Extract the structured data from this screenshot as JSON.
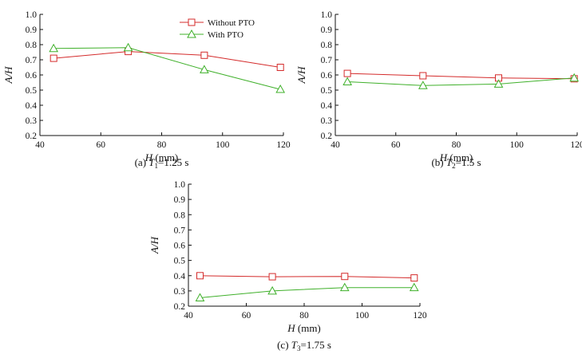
{
  "style": {
    "without_color": "#d42b2b",
    "with_color": "#3fb02a",
    "axis_color": "#111111"
  },
  "legend": {
    "without_label": "Without PTO",
    "with_label": "With PTO",
    "placement": "top-center"
  },
  "chart_data": [
    {
      "type": "line",
      "id": "a",
      "caption": {
        "prefix": "(a) ",
        "var": "T",
        "sub": "1",
        "suffix": "=1.25 s"
      },
      "xlabel": {
        "var": "H",
        "unit": " (mm)"
      },
      "ylabel": "A/H",
      "xlim": [
        40,
        120
      ],
      "ylim": [
        0.2,
        1.0
      ],
      "xticks": [
        "40",
        "60",
        "80",
        "100",
        "120"
      ],
      "yticks": [
        "0.2",
        "0.3",
        "0.4",
        "0.5",
        "0.6",
        "0.7",
        "0.8",
        "0.9",
        "1.0"
      ],
      "series": [
        {
          "name": "Without PTO",
          "marker": "square",
          "x": [
            44.5,
            69,
            94,
            119
          ],
          "values": [
            0.71,
            0.755,
            0.73,
            0.65
          ]
        },
        {
          "name": "With PTO",
          "marker": "triangle",
          "x": [
            44.5,
            69,
            94,
            119
          ],
          "values": [
            0.775,
            0.78,
            0.635,
            0.505
          ]
        }
      ]
    },
    {
      "type": "line",
      "id": "b",
      "caption": {
        "prefix": "(b) ",
        "var": "T",
        "sub": "2",
        "suffix": "=1.5 s"
      },
      "xlabel": {
        "var": "H",
        "unit": " (mm)"
      },
      "ylabel": "A/H",
      "xlim": [
        40,
        120
      ],
      "ylim": [
        0.2,
        1.0
      ],
      "xticks": [
        "40",
        "60",
        "80",
        "100",
        "120"
      ],
      "yticks": [
        "0.2",
        "0.3",
        "0.4",
        "0.5",
        "0.6",
        "0.7",
        "0.8",
        "0.9",
        "1.0"
      ],
      "series": [
        {
          "name": "Without PTO",
          "marker": "square",
          "x": [
            44,
            69,
            94,
            119
          ],
          "values": [
            0.61,
            0.595,
            0.58,
            0.575
          ]
        },
        {
          "name": "With PTO",
          "marker": "triangle",
          "x": [
            44,
            69,
            94,
            119
          ],
          "values": [
            0.555,
            0.53,
            0.54,
            0.58
          ]
        }
      ]
    },
    {
      "type": "line",
      "id": "c",
      "caption": {
        "prefix": "(c) ",
        "var": "T",
        "sub": "3",
        "suffix": "=1.75 s"
      },
      "xlabel": {
        "var": "H",
        "unit": " (mm)"
      },
      "ylabel": "A/H",
      "xlim": [
        40,
        120
      ],
      "ylim": [
        0.2,
        1.0
      ],
      "xticks": [
        "40",
        "60",
        "80",
        "100",
        "120"
      ],
      "yticks": [
        "0.2",
        "0.3",
        "0.4",
        "0.5",
        "0.6",
        "0.7",
        "0.8",
        "0.9",
        "1.0"
      ],
      "series": [
        {
          "name": "Without PTO",
          "marker": "square",
          "x": [
            44,
            69,
            94,
            118
          ],
          "values": [
            0.4,
            0.393,
            0.395,
            0.385
          ]
        },
        {
          "name": "With PTO",
          "marker": "triangle",
          "x": [
            44,
            69,
            94,
            118
          ],
          "values": [
            0.255,
            0.3,
            0.322,
            0.322
          ]
        }
      ]
    }
  ]
}
